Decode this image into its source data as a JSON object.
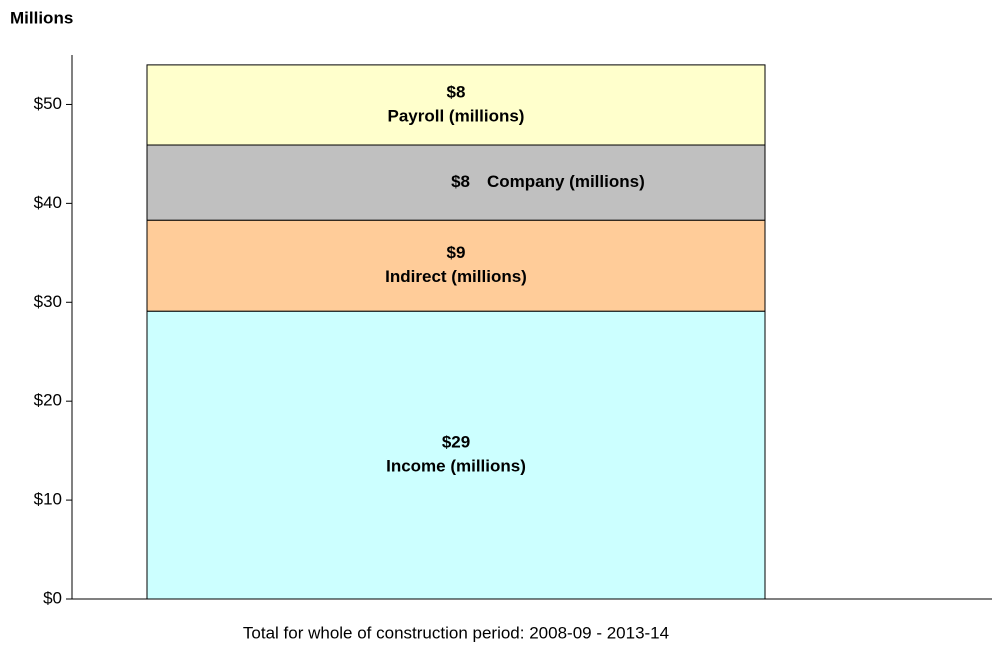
{
  "chart_data": {
    "type": "stacked_bar",
    "y_axis_label": "Millions",
    "categories": [
      "Total for whole of construction period:  2008-09 - 2013-14"
    ],
    "series": [
      {
        "name": "Income (millions)",
        "color": "#ccffff",
        "values": [
          29.1
        ],
        "value_labels": [
          "$29"
        ]
      },
      {
        "name": "Indirect (millions)",
        "color": "#ffcc99",
        "values": [
          9.2
        ],
        "value_labels": [
          "$9"
        ]
      },
      {
        "name": "Company (millions)",
        "color": "#c0c0c0",
        "values": [
          7.6
        ],
        "value_labels": [
          "$8"
        ]
      },
      {
        "name": "Payroll (millions)",
        "color": "#ffffcc",
        "values": [
          8.1
        ],
        "value_labels": [
          "$8"
        ]
      }
    ],
    "ylim": [
      0,
      55
    ],
    "yticks": [
      {
        "value": 0,
        "label": "$0"
      },
      {
        "value": 10,
        "label": "$10"
      },
      {
        "value": 20,
        "label": "$20"
      },
      {
        "value": 30,
        "label": "$30"
      },
      {
        "value": 40,
        "label": "$40"
      },
      {
        "value": 50,
        "label": "$50"
      }
    ],
    "grid": false
  }
}
